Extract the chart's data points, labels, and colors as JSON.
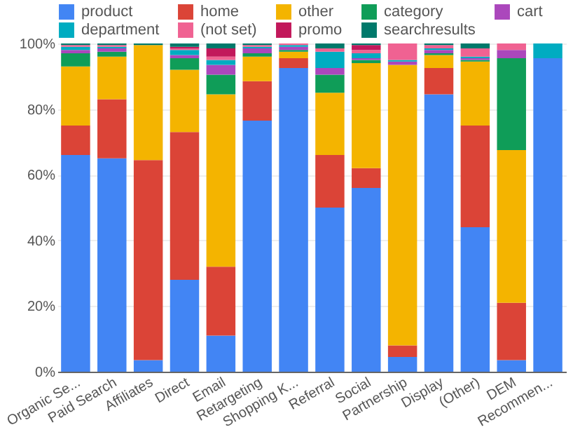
{
  "chart_data": {
    "type": "bar",
    "stacked": true,
    "legend": "top left",
    "grid": "y",
    "categories": [
      "Organic Se...",
      "Paid Search",
      "Affiliates",
      "Direct",
      "Email",
      "Retargeting",
      "Shopping K...",
      "Referral",
      "Social",
      "Partnership",
      "Display",
      "(Other)",
      "DEM",
      "Recommen..."
    ],
    "ylim": [
      0,
      100
    ],
    "yticks": [
      {
        "value": 0,
        "label": "0%"
      },
      {
        "value": 20,
        "label": "20%"
      },
      {
        "value": 40,
        "label": "40%"
      },
      {
        "value": 60,
        "label": "60%"
      },
      {
        "value": 80,
        "label": "80%"
      },
      {
        "value": 100,
        "label": "100%"
      }
    ],
    "series": [
      {
        "name": "product",
        "color": "#4285f4",
        "values": [
          66,
          65,
          3.5,
          28,
          11,
          76.5,
          92.5,
          50,
          56,
          4.5,
          84.5,
          44,
          3.5,
          95.5
        ]
      },
      {
        "name": "home",
        "color": "#db4437",
        "values": [
          9,
          18,
          61,
          45,
          21,
          12,
          3,
          16,
          6,
          3.5,
          8,
          31,
          17.5,
          0
        ]
      },
      {
        "name": "other",
        "color": "#f4b400",
        "values": [
          18,
          13,
          35,
          19,
          52.5,
          7.5,
          2,
          19,
          32,
          85.5,
          4,
          19.5,
          46.5,
          0
        ]
      },
      {
        "name": "category",
        "color": "#0f9d58",
        "values": [
          4,
          1.5,
          0,
          3.5,
          6,
          1,
          0.5,
          5.5,
          1,
          0,
          0.5,
          0.5,
          28,
          0
        ]
      },
      {
        "name": "cart",
        "color": "#ab47bc",
        "values": [
          1,
          1,
          0,
          1,
          3,
          1.5,
          1,
          2,
          0.5,
          1,
          1,
          0.5,
          2.5,
          0
        ]
      },
      {
        "name": "department",
        "color": "#00acc1",
        "values": [
          1,
          0.5,
          0,
          1.5,
          1.5,
          0.5,
          0.5,
          5,
          1.5,
          0.5,
          0.5,
          0.5,
          0,
          4.5
        ]
      },
      {
        "name": "(not set)",
        "color": "#f06292",
        "values": [
          0.5,
          0.5,
          0,
          0.5,
          1,
          0.5,
          0.5,
          1,
          1,
          5,
          1,
          2.5,
          2,
          0
        ]
      },
      {
        "name": "promo",
        "color": "#c2185b",
        "values": [
          0,
          0,
          0,
          0.5,
          2.5,
          0,
          0,
          0,
          1.5,
          0,
          0,
          0,
          0,
          0
        ]
      },
      {
        "name": "searchresults",
        "color": "#00796b",
        "values": [
          0.5,
          0.5,
          0.5,
          1,
          1.5,
          0.5,
          0,
          1.5,
          0.5,
          0,
          0.5,
          1.5,
          0,
          0
        ]
      }
    ]
  }
}
